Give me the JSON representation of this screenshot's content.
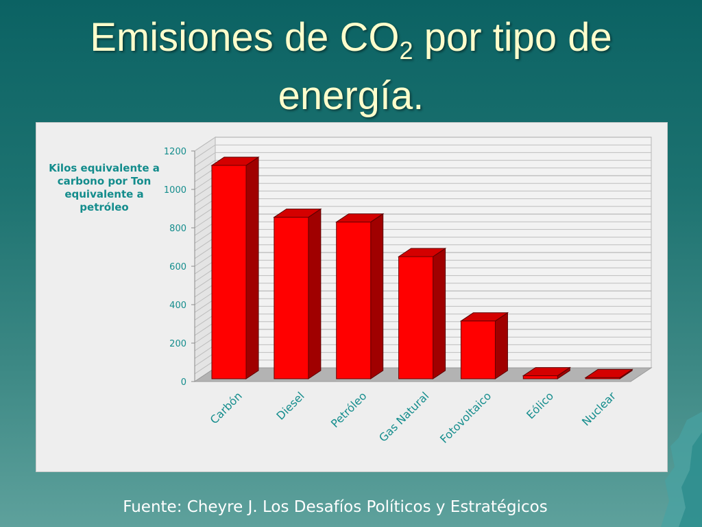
{
  "slide": {
    "title_part1": "Emisiones de CO",
    "title_sub": "2",
    "title_part2": " por tipo de",
    "title_line2": "energía.",
    "source": "Fuente: Cheyre J. Los Desafíos Políticos y Estratégicos"
  },
  "chart_data": {
    "type": "bar",
    "categories": [
      "Carbón",
      "Diesel",
      "Petróleo",
      "Gas Natural",
      "Fotovoltaico",
      "Eólico",
      "Nuclear"
    ],
    "values": [
      1125,
      855,
      830,
      650,
      315,
      30,
      20
    ],
    "ylabel": "Kilos equivalente a carbono por Ton equivalente a petróleo",
    "yticks": [
      0,
      200,
      400,
      600,
      800,
      1000,
      1200
    ],
    "ylim": [
      0,
      1200
    ],
    "style": "3d-bar",
    "grid": true,
    "legend": "none",
    "colors": {
      "bar_front": "#ff0000",
      "bar_side": "#a00000",
      "bar_top": "#d40000",
      "axis_text": "#138c8c"
    }
  }
}
